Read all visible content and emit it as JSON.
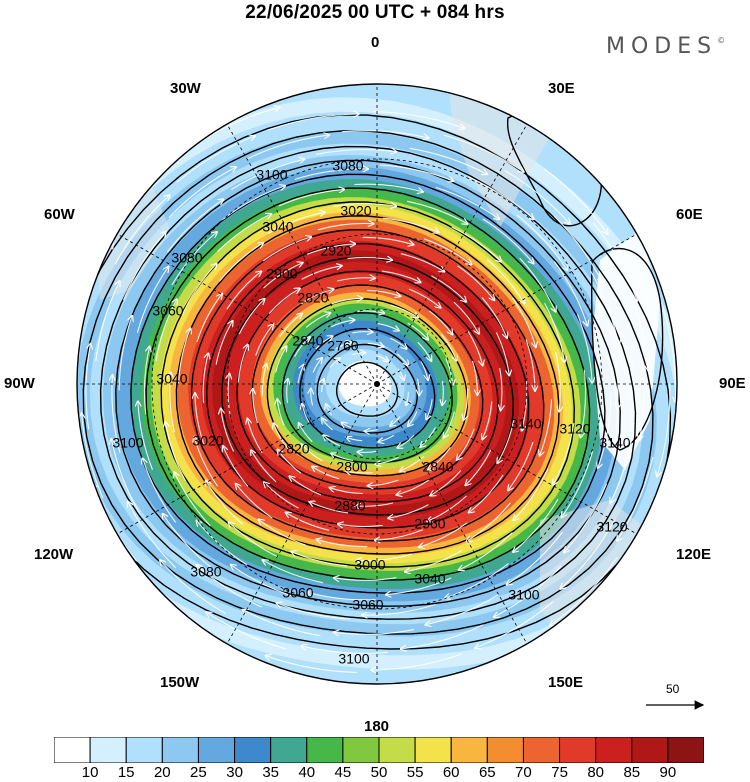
{
  "header": {
    "title": "22/06/2025  00 UTC  + 084 hrs",
    "brand": "MODES",
    "brand_mark": "©"
  },
  "longitude_labels": [
    {
      "id": "lon-0",
      "text": "0"
    },
    {
      "id": "lon-30e",
      "text": "30E"
    },
    {
      "id": "lon-60e",
      "text": "60E"
    },
    {
      "id": "lon-90e",
      "text": "90E"
    },
    {
      "id": "lon-120e",
      "text": "120E"
    },
    {
      "id": "lon-150e",
      "text": "150E"
    },
    {
      "id": "lon-180",
      "text": "180"
    },
    {
      "id": "lon-150w",
      "text": "150W"
    },
    {
      "id": "lon-120w",
      "text": "120W"
    },
    {
      "id": "lon-90w",
      "text": "90W"
    },
    {
      "id": "lon-60w",
      "text": "60W"
    },
    {
      "id": "lon-30w",
      "text": "30W"
    }
  ],
  "contour_labels": [
    "2760",
    "2800",
    "2820",
    "2840",
    "2880",
    "2900",
    "2920",
    "2960",
    "3000",
    "3020",
    "3040",
    "3060",
    "3080",
    "3100",
    "3120",
    "3140"
  ],
  "wind_reference": {
    "value": "50"
  },
  "colorbar": {
    "labels": [
      "10",
      "15",
      "20",
      "25",
      "30",
      "35",
      "40",
      "45",
      "50",
      "55",
      "60",
      "65",
      "70",
      "75",
      "80",
      "85",
      "90"
    ],
    "colors": [
      "#ffffff",
      "#d4f0ff",
      "#b0e0fb",
      "#8cc8f0",
      "#64a8e0",
      "#3e88cc",
      "#40a890",
      "#46b84a",
      "#80c840",
      "#c4dc48",
      "#f4e24a",
      "#f8b640",
      "#f48c30",
      "#ec6430",
      "#e23a2a",
      "#cc2020",
      "#b01818",
      "#8c1414"
    ]
  }
}
